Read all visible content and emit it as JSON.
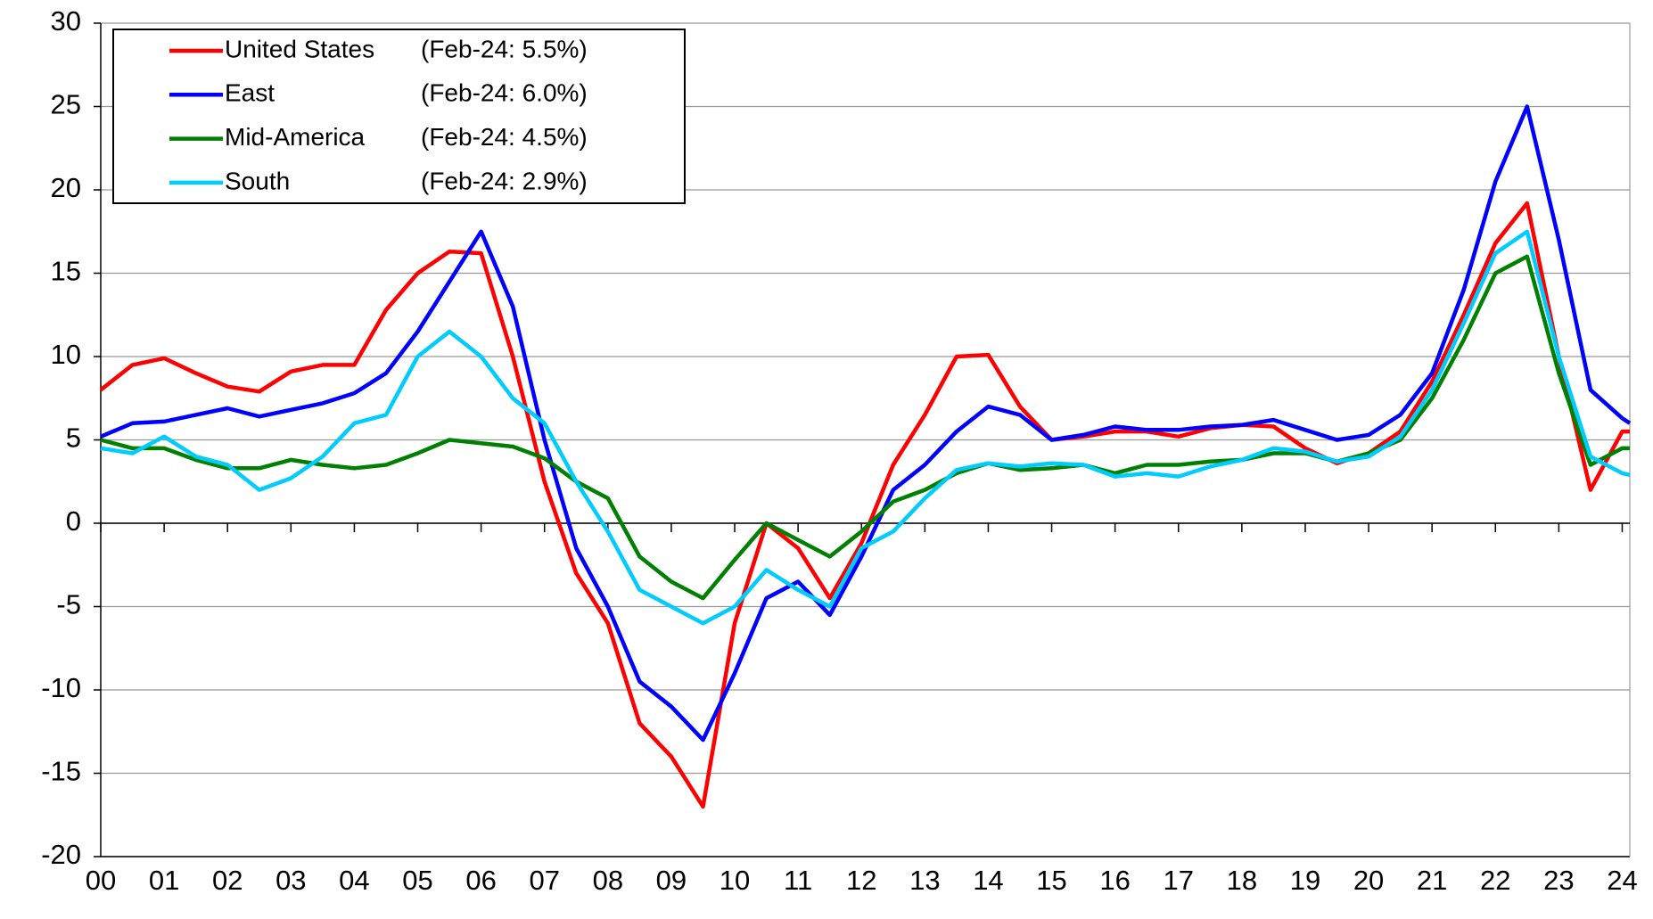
{
  "chart_data": {
    "type": "line",
    "x": [
      0,
      0.5,
      1,
      1.5,
      2,
      2.5,
      3,
      3.5,
      4,
      4.5,
      5,
      5.5,
      6,
      6.5,
      7,
      7.5,
      8,
      8.5,
      9,
      9.5,
      10,
      10.5,
      11,
      11.5,
      12,
      12.5,
      13,
      13.5,
      14,
      14.5,
      15,
      15.5,
      16,
      16.5,
      17,
      17.5,
      18,
      18.5,
      19,
      19.5,
      20,
      20.5,
      21,
      21.5,
      22,
      22.5,
      23,
      23.5,
      24,
      24.12
    ],
    "series": [
      {
        "name": "United States",
        "legend_note": "(Feb-24: 5.5%)",
        "color": "#ff0000",
        "values": [
          8,
          9.5,
          9.9,
          9,
          8.2,
          7.9,
          9.1,
          9.5,
          9.5,
          12.8,
          15,
          16.3,
          16.2,
          10,
          2.5,
          -3,
          -6,
          -12,
          -14,
          -17,
          -6,
          0,
          -1.5,
          -4.5,
          -1.2,
          3.5,
          6.5,
          10,
          10.1,
          7,
          5,
          5.2,
          5.5,
          5.5,
          5.2,
          5.7,
          5.9,
          5.8,
          4.5,
          3.6,
          4.2,
          5.5,
          8.5,
          12.5,
          16.8,
          19.2,
          10,
          2,
          5.5,
          5.5
        ]
      },
      {
        "name": "East",
        "legend_note": "(Feb-24: 6.0%)",
        "color": "#0000ff",
        "values": [
          5.2,
          6,
          6.1,
          6.5,
          6.9,
          6.4,
          6.8,
          7.2,
          7.8,
          9,
          11.5,
          14.5,
          17.5,
          13,
          5,
          -1.5,
          -5,
          -9.5,
          -11,
          -13,
          -9,
          -4.5,
          -3.5,
          -5.5,
          -2,
          2,
          3.5,
          5.5,
          7,
          6.5,
          5,
          5.3,
          5.8,
          5.6,
          5.6,
          5.8,
          5.9,
          6.2,
          5.6,
          5,
          5.3,
          6.5,
          9,
          14,
          20.5,
          25,
          17,
          8,
          6.3,
          6
        ]
      },
      {
        "name": "Mid-America",
        "legend_note": "(Feb-24: 4.5%)",
        "color": "#008000",
        "values": [
          5,
          4.5,
          4.5,
          3.8,
          3.3,
          3.3,
          3.8,
          3.5,
          3.3,
          3.5,
          4.2,
          5,
          4.8,
          4.6,
          3.9,
          2.5,
          1.5,
          -2,
          -3.5,
          -4.5,
          -2.2,
          0,
          -1,
          -2,
          -0.5,
          1.3,
          2,
          3,
          3.6,
          3.2,
          3.3,
          3.5,
          3,
          3.5,
          3.5,
          3.7,
          3.8,
          4.2,
          4.2,
          3.7,
          4.2,
          5,
          7.5,
          11,
          15,
          16,
          9,
          3.5,
          4.5,
          4.5
        ]
      },
      {
        "name": "South",
        "legend_note": "(Feb-24: 2.9%)",
        "color": "#00ccff",
        "values": [
          4.5,
          4.2,
          5.2,
          4,
          3.5,
          2,
          2.7,
          4,
          6,
          6.5,
          10,
          11.5,
          10,
          7.5,
          6,
          2.5,
          -0.5,
          -4,
          -5,
          -6,
          -5,
          -2.8,
          -4,
          -5,
          -1.5,
          -0.5,
          1.5,
          3.2,
          3.6,
          3.4,
          3.6,
          3.5,
          2.8,
          3,
          2.8,
          3.4,
          3.8,
          4.5,
          4.3,
          3.7,
          4,
          5.2,
          8,
          12,
          16.2,
          17.5,
          10,
          4,
          3,
          2.9
        ]
      }
    ],
    "xlim": [
      0,
      24.12
    ],
    "xticks": [
      {
        "value": 0,
        "label": "00"
      },
      {
        "value": 1,
        "label": "01"
      },
      {
        "value": 2,
        "label": "02"
      },
      {
        "value": 3,
        "label": "03"
      },
      {
        "value": 4,
        "label": "04"
      },
      {
        "value": 5,
        "label": "05"
      },
      {
        "value": 6,
        "label": "06"
      },
      {
        "value": 7,
        "label": "07"
      },
      {
        "value": 8,
        "label": "08"
      },
      {
        "value": 9,
        "label": "09"
      },
      10,
      11,
      12,
      13,
      14,
      15,
      16,
      17,
      18,
      19,
      20,
      21,
      22,
      23,
      24
    ],
    "ylim": [
      -20,
      30
    ],
    "yticks": [
      -20,
      -15,
      -10,
      -5,
      0,
      5,
      10,
      15,
      20,
      25,
      30
    ],
    "grid": true,
    "legend": "upper left"
  }
}
